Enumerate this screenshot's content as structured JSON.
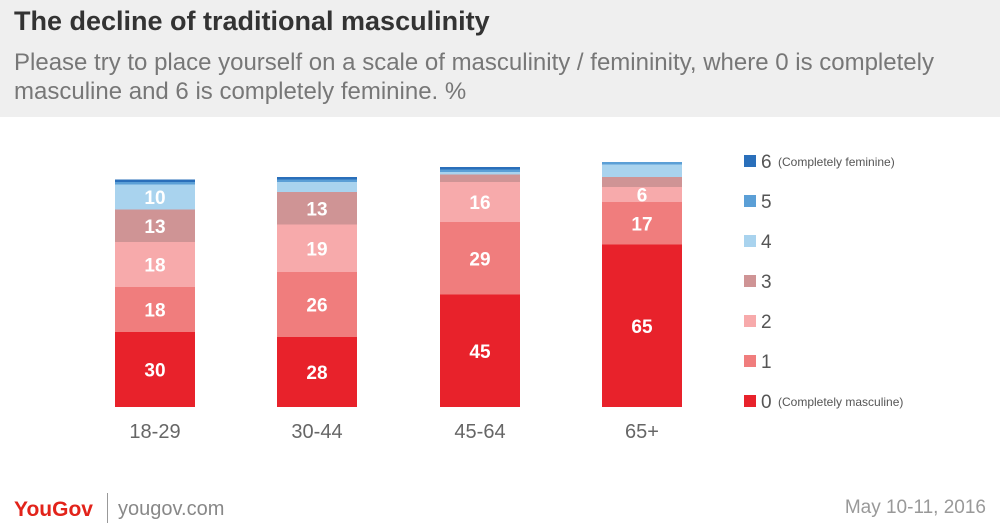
{
  "header": {
    "title": "The decline of traditional masculinity",
    "subtitle": "Please try to place yourself on a scale of masculinity / femininity, where 0 is completely masculine and 6 is completely feminine. %"
  },
  "footer": {
    "brand": "YouGov",
    "site": "yougov.com",
    "date": "May 10-11, 2016"
  },
  "chart_data": {
    "type": "bar",
    "stacked": true,
    "title": "The decline of traditional masculinity",
    "categories": [
      "18-29",
      "30-44",
      "45-64",
      "65+"
    ],
    "series": [
      {
        "name": "0",
        "note": "(Completely masculine)",
        "color": "#e8222b",
        "values": [
          30,
          28,
          45,
          65
        ],
        "labels": [
          "30",
          "28",
          "45",
          "65"
        ]
      },
      {
        "name": "1",
        "note": "",
        "color": "#f07d7d",
        "values": [
          18,
          26,
          29,
          17
        ],
        "labels": [
          "18",
          "26",
          "29",
          "17"
        ]
      },
      {
        "name": "2",
        "note": "",
        "color": "#f7aaab",
        "values": [
          18,
          19,
          16,
          6
        ],
        "labels": [
          "18",
          "19",
          "16",
          "6"
        ]
      },
      {
        "name": "3",
        "note": "",
        "color": "#cf9495",
        "values": [
          13,
          13,
          3,
          4
        ],
        "labels": [
          "13",
          "13",
          "",
          ""
        ]
      },
      {
        "name": "4",
        "note": "",
        "color": "#a9d3ee",
        "values": [
          10,
          4,
          1,
          5
        ],
        "labels": [
          "10",
          "",
          "",
          ""
        ]
      },
      {
        "name": "5",
        "note": "",
        "color": "#5b9fd6",
        "values": [
          1,
          1,
          1,
          1
        ],
        "labels": [
          "",
          "",
          "",
          ""
        ]
      },
      {
        "name": "6",
        "note": "(Completely feminine)",
        "color": "#2a6fba",
        "values": [
          1,
          1,
          1,
          0
        ],
        "labels": [
          "",
          "",
          "",
          ""
        ]
      }
    ],
    "xlabel": "",
    "ylabel": "%",
    "ylim": [
      0,
      100
    ],
    "grid": false,
    "legend": "right"
  }
}
